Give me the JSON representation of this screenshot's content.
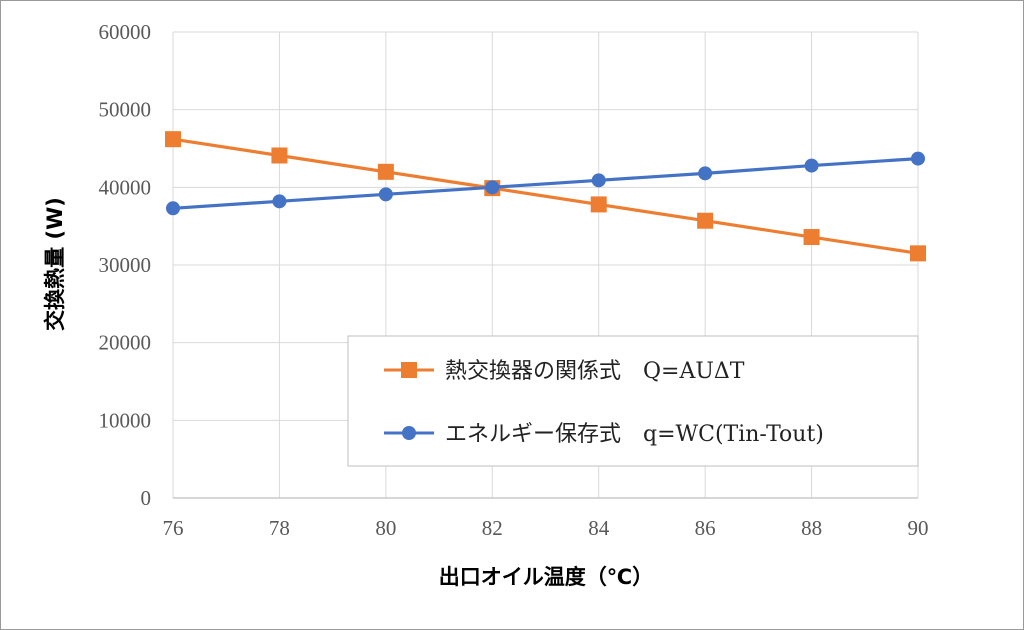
{
  "chart_data": {
    "type": "line",
    "title": "",
    "xlabel": "出口オイル温度（℃）",
    "ylabel": "交換熱量 (W)",
    "x": [
      76,
      78,
      80,
      82,
      84,
      86,
      88,
      90
    ],
    "xlim": [
      76,
      90
    ],
    "ylim": [
      0,
      60000
    ],
    "xticks": [
      76,
      78,
      80,
      82,
      84,
      86,
      88,
      90
    ],
    "yticks": [
      0,
      10000,
      20000,
      30000,
      40000,
      50000,
      60000
    ],
    "grid": true,
    "legend_position": "lower-right",
    "series": [
      {
        "name": "熱交換器の関係式　Q=AUΔT",
        "color": "#ED7D31",
        "marker": "square",
        "values": [
          46200,
          44100,
          42000,
          39900,
          37800,
          35700,
          33600,
          31500
        ]
      },
      {
        "name": "エネルギー保存式　q=WC(Tin-Tout)",
        "color": "#4472C4",
        "marker": "circle",
        "values": [
          37300,
          38200,
          39100,
          40000,
          40900,
          41800,
          42800,
          43700
        ]
      }
    ]
  }
}
